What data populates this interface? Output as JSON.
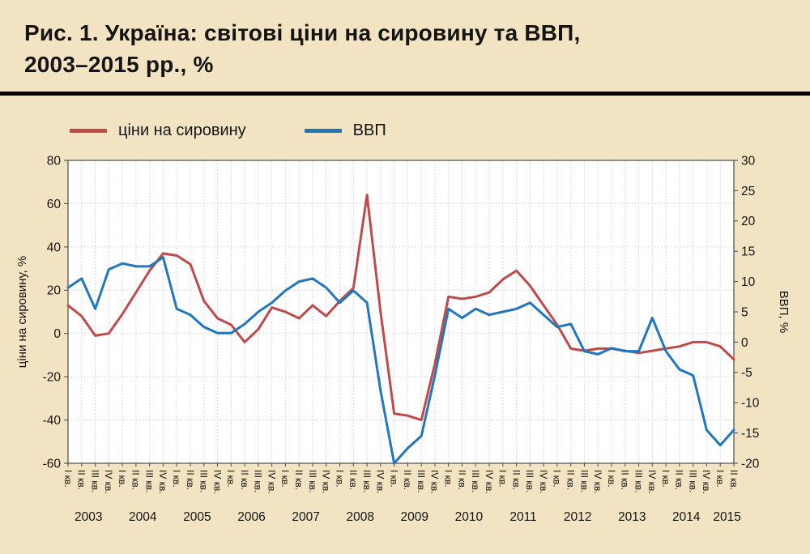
{
  "header": {
    "title_lines": [
      "Рис. 1. Україна: світові ціни на сировину та ВВП,",
      "2003–2015 рр., %"
    ]
  },
  "chart_data": {
    "type": "line",
    "title": "Рис. 1. Україна: світові ціни на сировину та ВВП, 2003–2015 рр., %",
    "background_color": "#f2e4c2",
    "plot_background": "#ffffff",
    "grid": true,
    "legend_position": "top-left",
    "x": {
      "quarter_labels": [
        "I кв.",
        "II кв.",
        "III кв.",
        "IV кв."
      ],
      "years": [
        {
          "year": "2003",
          "quarters": 4
        },
        {
          "year": "2004",
          "quarters": 4
        },
        {
          "year": "2005",
          "quarters": 4
        },
        {
          "year": "2006",
          "quarters": 4
        },
        {
          "year": "2007",
          "quarters": 4
        },
        {
          "year": "2008",
          "quarters": 4
        },
        {
          "year": "2009",
          "quarters": 4
        },
        {
          "year": "2010",
          "quarters": 4
        },
        {
          "year": "2011",
          "quarters": 4
        },
        {
          "year": "2012",
          "quarters": 4
        },
        {
          "year": "2013",
          "quarters": 4
        },
        {
          "year": "2014",
          "quarters": 4
        },
        {
          "year": "2015",
          "quarters": 2
        }
      ]
    },
    "left_axis": {
      "label": "ціни на сировину, %",
      "min": -60,
      "max": 80,
      "step": 20
    },
    "right_axis": {
      "label": "ВВП, %",
      "min": -20,
      "max": 30,
      "step": 5
    },
    "series": [
      {
        "name": "ціни на сировину",
        "axis": "left",
        "color": "#bf4a47",
        "values": [
          13,
          8,
          -1,
          0,
          9,
          19,
          29,
          37,
          36,
          32,
          15,
          7,
          4,
          -4,
          2,
          12,
          10,
          7,
          13,
          8,
          15,
          21,
          64,
          10,
          -37,
          -38,
          -40,
          -14,
          17,
          16,
          17,
          19,
          25,
          29,
          22,
          13,
          4,
          -7,
          -8,
          -7,
          -7,
          -8,
          -9,
          -8,
          -7,
          -6,
          -4,
          -4,
          -6,
          -12
        ]
      },
      {
        "name": "ВВП",
        "axis": "right",
        "color": "#2176c0",
        "values": [
          9,
          10.5,
          5.5,
          12,
          13,
          12.5,
          12.5,
          14,
          5.5,
          4.5,
          2.5,
          1.5,
          1.5,
          3,
          5,
          6.5,
          8.5,
          10,
          10.5,
          9,
          6.5,
          8.5,
          6.5,
          -8,
          -20,
          -17.5,
          -15.5,
          -5.5,
          5.5,
          4,
          5.5,
          4.5,
          5,
          5.5,
          6.5,
          4.5,
          2.5,
          3,
          -1.5,
          -2,
          -1,
          -1.5,
          -1.5,
          4,
          -1.5,
          -4.5,
          -5.5,
          -14.5,
          -17,
          -14.5
        ]
      }
    ]
  }
}
